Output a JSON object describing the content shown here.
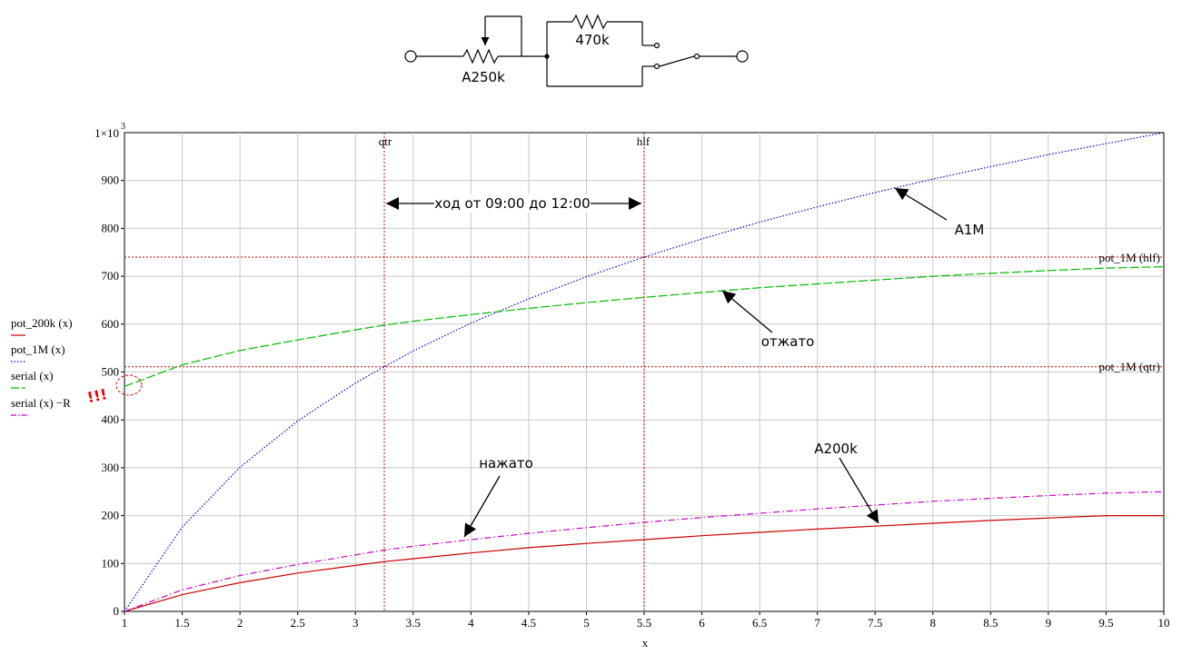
{
  "circuit": {
    "pot_label": "A250k",
    "resistor_label": "470k"
  },
  "chart_data": {
    "type": "line",
    "xlabel": "x",
    "xlim": [
      1,
      10
    ],
    "ylim": [
      0,
      1000
    ],
    "grid": true,
    "x_ticks": [
      "1",
      "1.5",
      "2",
      "2.5",
      "3",
      "3.5",
      "4",
      "4.5",
      "5",
      "5.5",
      "6",
      "6.5",
      "7",
      "7.5",
      "8",
      "8.5",
      "9",
      "9.5",
      "10"
    ],
    "y_ticks": [
      "0",
      "100",
      "200",
      "300",
      "400",
      "500",
      "600",
      "700",
      "800",
      "900"
    ],
    "y_top_tick": "1×10",
    "y_top_tick_exp": "3",
    "x": [
      1,
      1.5,
      2,
      2.5,
      3,
      3.25,
      3.5,
      4,
      4.5,
      5,
      5.5,
      6,
      6.5,
      7,
      7.5,
      8,
      8.5,
      9,
      9.5,
      10
    ],
    "series": [
      {
        "name": "pot_200k (x)",
        "color": "#cc0000",
        "style": "solid",
        "values": [
          0,
          35,
          60,
          80,
          96,
          104,
          110,
          122,
          133,
          142,
          150,
          158,
          165,
          172,
          178,
          184,
          190,
          195,
          200,
          200
        ]
      },
      {
        "name": "pot_1M (x)",
        "color": "#0000cc",
        "style": "dotted",
        "values": [
          0,
          176,
          301,
          398,
          477,
          511,
          544,
          602,
          653,
          699,
          740,
          778,
          813,
          845,
          875,
          903,
          929,
          954,
          977,
          1000
        ]
      },
      {
        "name": "serial (x)",
        "color": "#00bb00",
        "style": "dashed",
        "values": [
          470,
          515,
          545,
          567,
          588,
          598,
          606,
          620,
          633,
          645,
          656,
          666,
          676,
          684,
          692,
          700,
          706,
          712,
          717,
          720
        ]
      },
      {
        "name": "serial (x) −R",
        "color": "#cc00cc",
        "style": "dashdot",
        "values": [
          0,
          45,
          75,
          98,
          118,
          128,
          136,
          150,
          163,
          175,
          186,
          196,
          205,
          214,
          222,
          230,
          236,
          242,
          247,
          250
        ]
      }
    ],
    "vlines": [
      {
        "x": 3.25,
        "label": "qtr"
      },
      {
        "x": 5.5,
        "label": "hlf"
      }
    ],
    "hlines": [
      {
        "y": 740,
        "label": "pot_1M (hlf)"
      },
      {
        "y": 511,
        "label": "pot_1M (qtr)"
      }
    ],
    "annotations": {
      "travel": "ход от 09:00 до 12:00",
      "a1m": "A1M",
      "released": "отжато",
      "pressed": "нажато",
      "a200k": "A200k",
      "warning": "!!!"
    }
  }
}
